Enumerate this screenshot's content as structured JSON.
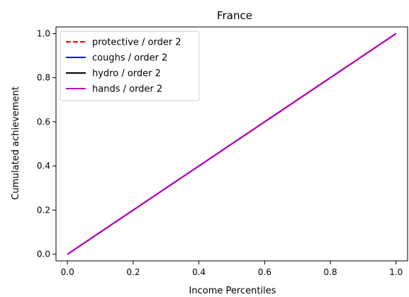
{
  "chart_data": {
    "type": "line",
    "title": "France",
    "xlabel": "Income Percentiles",
    "ylabel": "Cumulated achievement",
    "xlim": [
      -0.035,
      1.035
    ],
    "ylim": [
      -0.03,
      1.03
    ],
    "xticks": [
      0.0,
      0.2,
      0.4,
      0.6,
      0.8,
      1.0
    ],
    "xtick_labels": [
      "0.0",
      "0.2",
      "0.4",
      "0.6",
      "0.8",
      "1.0"
    ],
    "yticks": [
      0.0,
      0.2,
      0.4,
      0.6,
      0.8,
      1.0
    ],
    "ytick_labels": [
      "0.0",
      "0.2",
      "0.4",
      "0.6",
      "0.8",
      "1.0"
    ],
    "grid": false,
    "legend_position": "top-left",
    "series": [
      {
        "name": "protective / order 2",
        "color": "#ff0000",
        "style": "dashed",
        "x": [
          0.0,
          1.0
        ],
        "y": [
          0.0,
          1.0
        ]
      },
      {
        "name": "coughs / order 2",
        "color": "#0000ff",
        "style": "solid",
        "x": [
          0.0,
          1.0
        ],
        "y": [
          0.0,
          1.0
        ]
      },
      {
        "name": "hydro / order 2",
        "color": "#000000",
        "style": "solid",
        "x": [
          0.0,
          1.0
        ],
        "y": [
          0.0,
          1.0
        ]
      },
      {
        "name": "hands / order 2",
        "color": "#bf00bf",
        "style": "solid",
        "x": [
          0.0,
          1.0
        ],
        "y": [
          0.0,
          1.0
        ]
      }
    ]
  }
}
